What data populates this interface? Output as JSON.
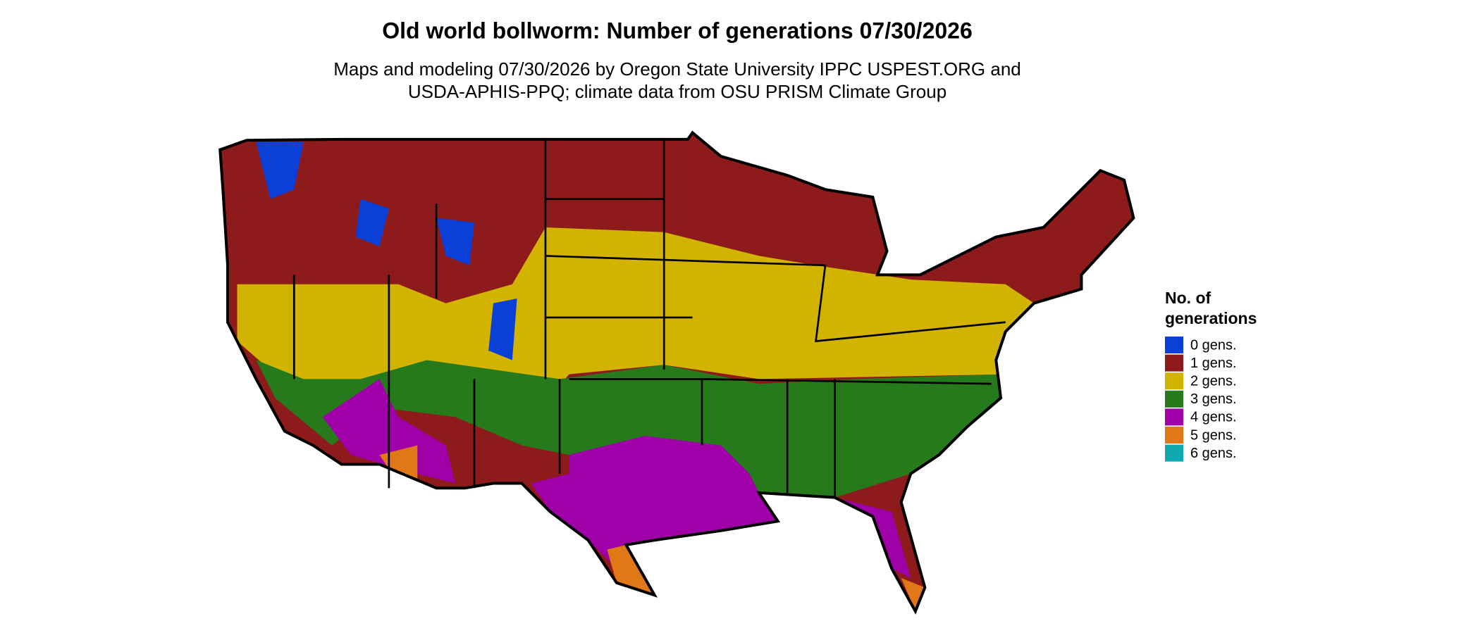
{
  "title": "Old world bollworm: Number of generations 07/30/2026",
  "subtitle_lines": [
    "Maps and modeling 07/30/2026 by Oregon State University IPPC USPEST.ORG and",
    "USDA-APHIS-PPQ; climate data from OSU PRISM Climate Group"
  ],
  "legend": {
    "title_lines": [
      "No. of",
      "generations"
    ],
    "items": [
      {
        "label": "0 gens.",
        "color": "#0a3fd8"
      },
      {
        "label": "1 gens.",
        "color": "#8e1b1b"
      },
      {
        "label": "2 gens.",
        "color": "#d2b400"
      },
      {
        "label": "3 gens.",
        "color": "#267a1c"
      },
      {
        "label": "4 gens.",
        "color": "#a000a8"
      },
      {
        "label": "5 gens.",
        "color": "#e07818"
      },
      {
        "label": "6 gens.",
        "color": "#10a8b0"
      }
    ]
  }
}
